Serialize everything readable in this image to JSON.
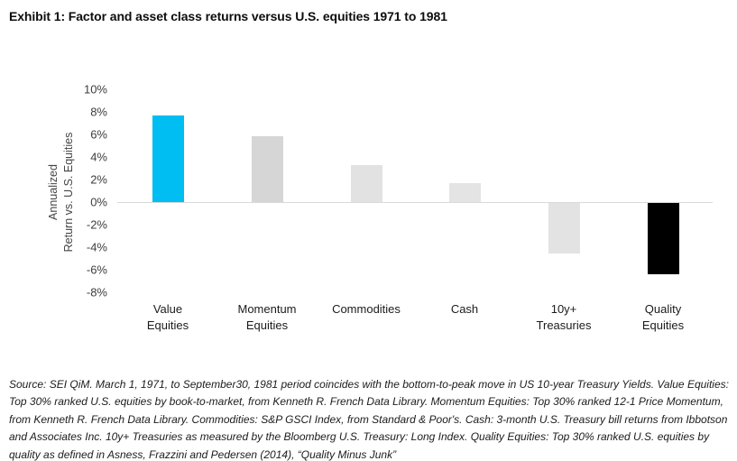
{
  "title": "Exhibit 1: Factor and asset class returns versus U.S. equities 1971 to 1981",
  "chart_data": {
    "type": "bar",
    "title": "Exhibit 1: Factor and asset class returns versus U.S. equities 1971 to 1981",
    "categories": [
      "Value Equities",
      "Momentum Equities",
      "Commodities",
      "Cash",
      "10y+ Treasuries",
      "Quality Equities"
    ],
    "category_label_lines": [
      [
        "Value",
        "Equities"
      ],
      [
        "Momentum",
        "Equities"
      ],
      [
        "Commodities"
      ],
      [
        "Cash"
      ],
      [
        "10y+",
        "Treasuries"
      ],
      [
        "Quality",
        "Equities"
      ]
    ],
    "values": [
      7.7,
      5.8,
      3.3,
      1.7,
      -4.5,
      -6.3
    ],
    "bar_colors": [
      "#00bdf2",
      "#d6d6d6",
      "#e2e2e2",
      "#e4e4e4",
      "#e3e3e3",
      "#000000"
    ],
    "xlabel": "",
    "ylabel": "Annualized Return vs. U.S. Equities",
    "ylabel_lines": [
      "Annualized",
      "Return vs. U.S. Equities"
    ],
    "ytick_labels": [
      "10%",
      "8%",
      "6%",
      "4%",
      "2%",
      "0%",
      "-2%",
      "-4%",
      "-6%",
      "-8%"
    ],
    "ytick_values": [
      10,
      8,
      6,
      4,
      2,
      0,
      -2,
      -4,
      -6,
      -8
    ],
    "ylim": [
      -8,
      10
    ],
    "grid": false,
    "legend": "none",
    "axis_line_color": "#d9d9d9",
    "accent_color": "#00bdf2"
  },
  "source": {
    "lines": [
      "Source: SEI QiM. March 1, 1971, to September30, 1981 period coincides with the bottom-to-peak move in US 10-year Treasury Yields. Value Equities:",
      "Top 30% ranked U.S. equities by book-to-market, from Kenneth R. French Data Library. Momentum Equities: Top 30% ranked 12-1 Price Momentum,",
      "from Kenneth R. French Data Library. Commodities: S&P GSCI Index, from Standard & Poor's. Cash: 3-month U.S. Treasury bill returns from Ibbotson",
      "and Associates Inc. 10y+ Treasuries as measured by the Bloomberg U.S. Treasury: Long Index. Quality Equities: Top 30% ranked U.S. equities by",
      "quality as defined in Asness, Frazzini and Pedersen (2014), “Quality Minus Junk”"
    ]
  }
}
